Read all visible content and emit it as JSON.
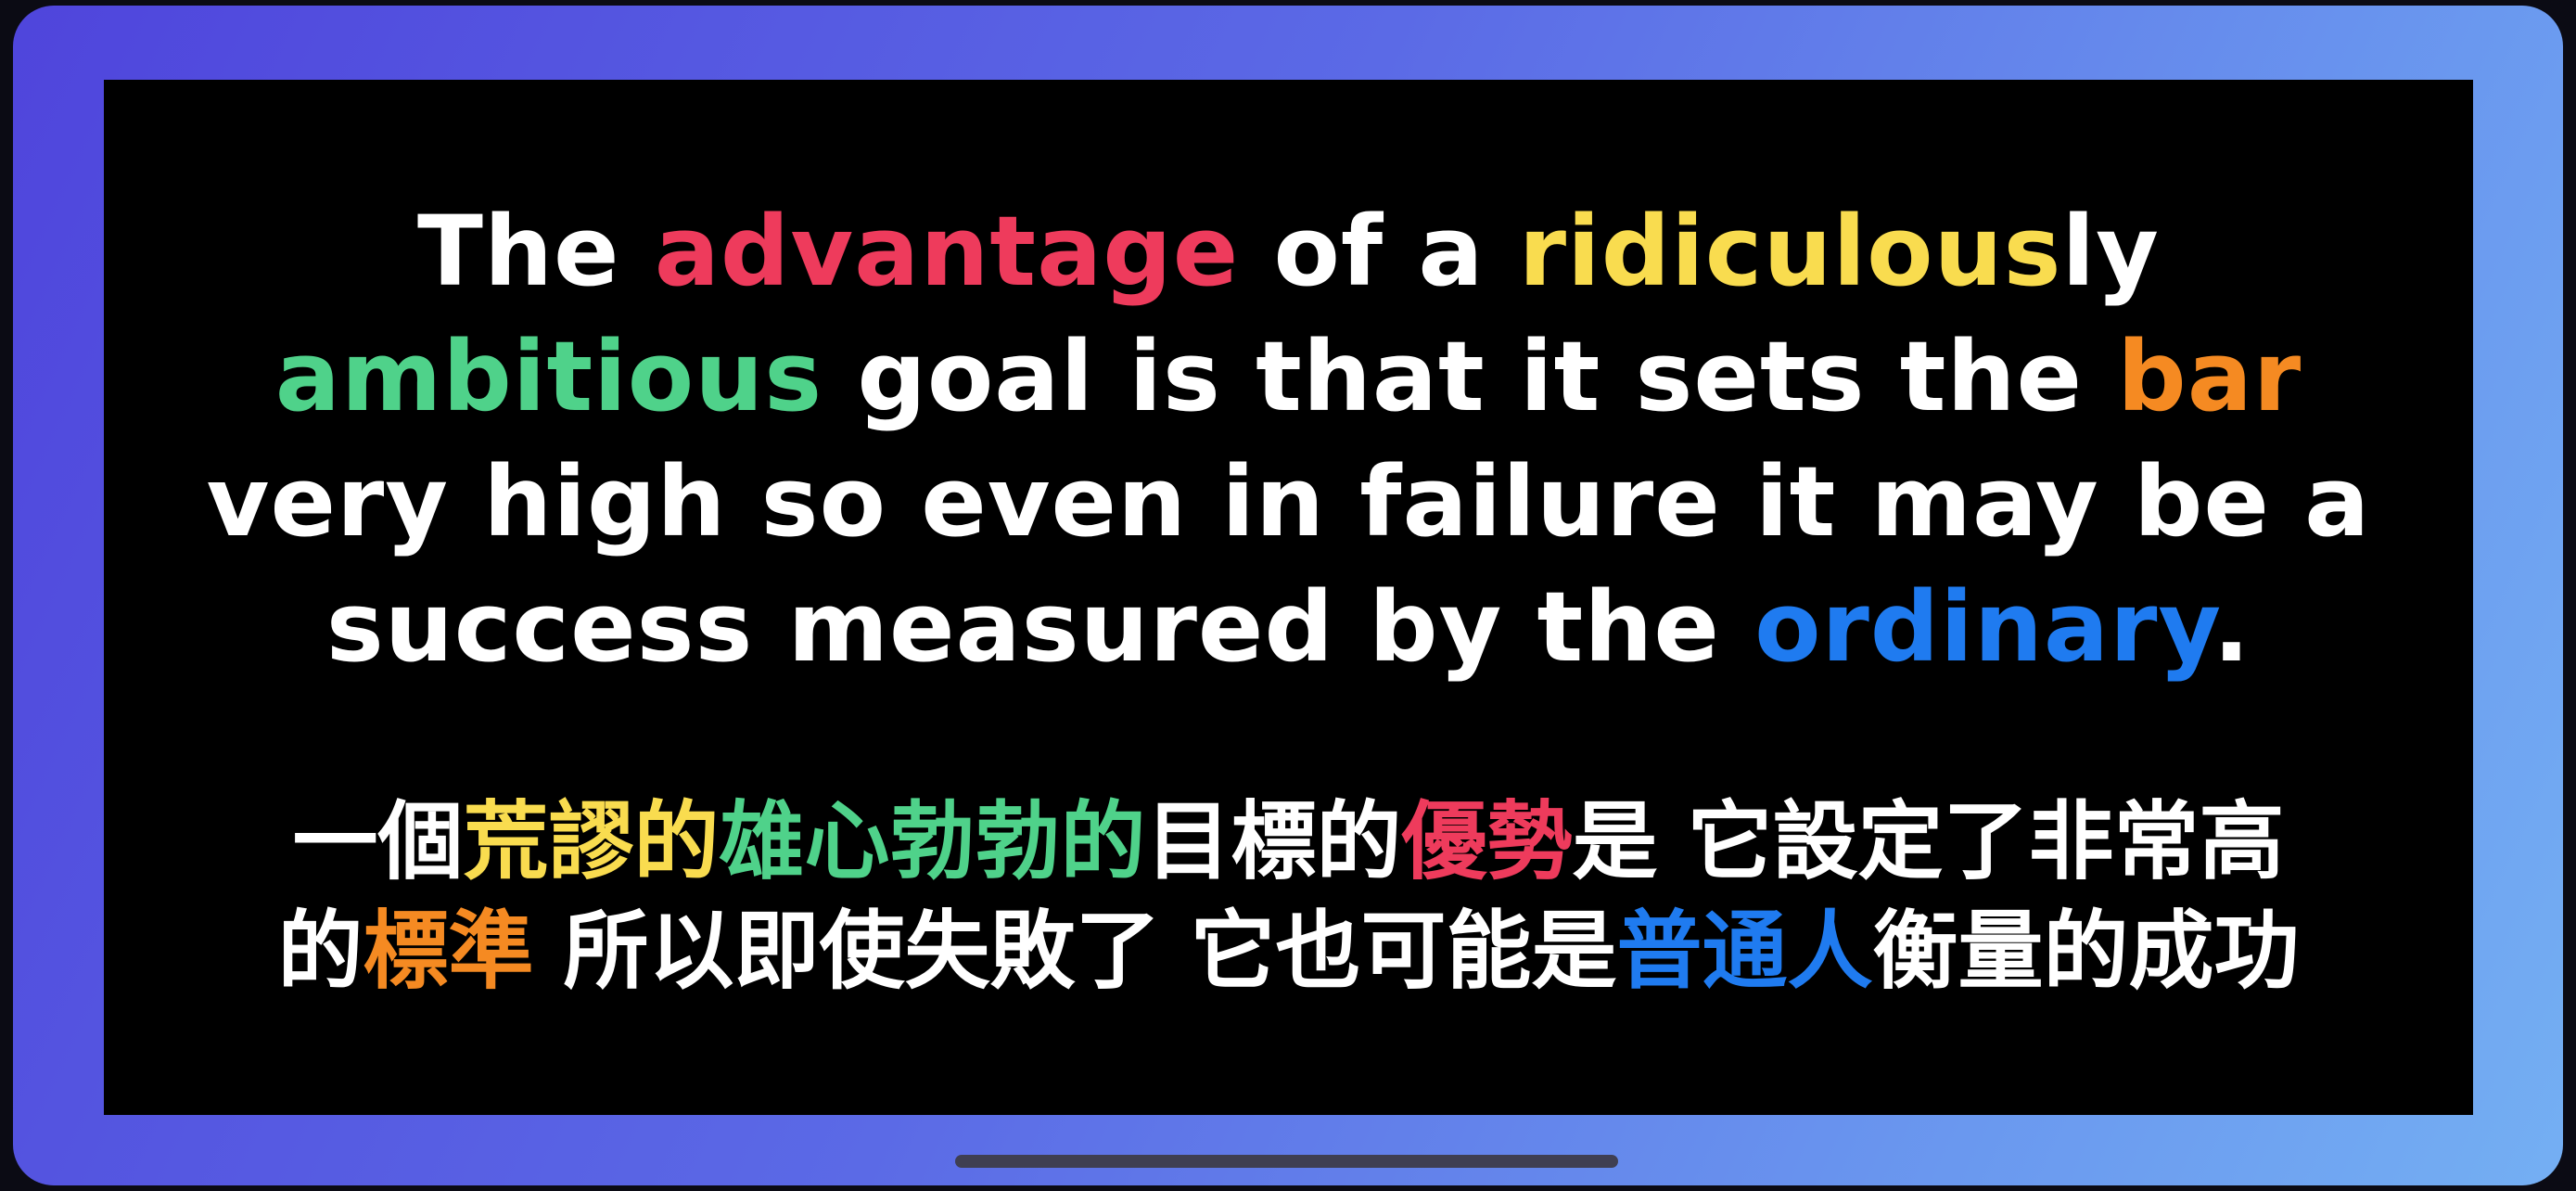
{
  "colors": {
    "frame_gradient_start": "#4f45dc",
    "frame_gradient_end": "#74aff3",
    "screen_bg": "#000000",
    "text": "#ffffff",
    "red": "#ee3b5c",
    "yellow": "#f9dc4f",
    "green": "#4fd28a",
    "orange": "#f58a22",
    "blue": "#1f7bf0",
    "home_indicator": "#3f3f52"
  },
  "quote_en": {
    "line1": {
      "p1": "The ",
      "advantage": "advantage",
      "p2": " of a ",
      "ridiculous": "ridiculous",
      "p3": "ly"
    },
    "line2": {
      "ambitious": "ambitious",
      "p1": " goal is that it sets the ",
      "bar": "bar"
    },
    "line3": {
      "p1": "very high so even in failure it may be a"
    },
    "line4": {
      "p1": "success measured by the ",
      "ordinary": "ordinary",
      "p2": "."
    }
  },
  "quote_zh": {
    "line1": {
      "p1": "一個",
      "absurd": "荒謬的",
      "ambitious": "雄心勃勃的",
      "p2": "目標的",
      "advantage": "優勢",
      "p3": "是 它設定了非常高"
    },
    "line2": {
      "p1": "的",
      "standard": "標準",
      "p2": " 所以即使失敗了 它也可能是",
      "ordinary": "普通人",
      "p3": "衡量的成功"
    }
  }
}
